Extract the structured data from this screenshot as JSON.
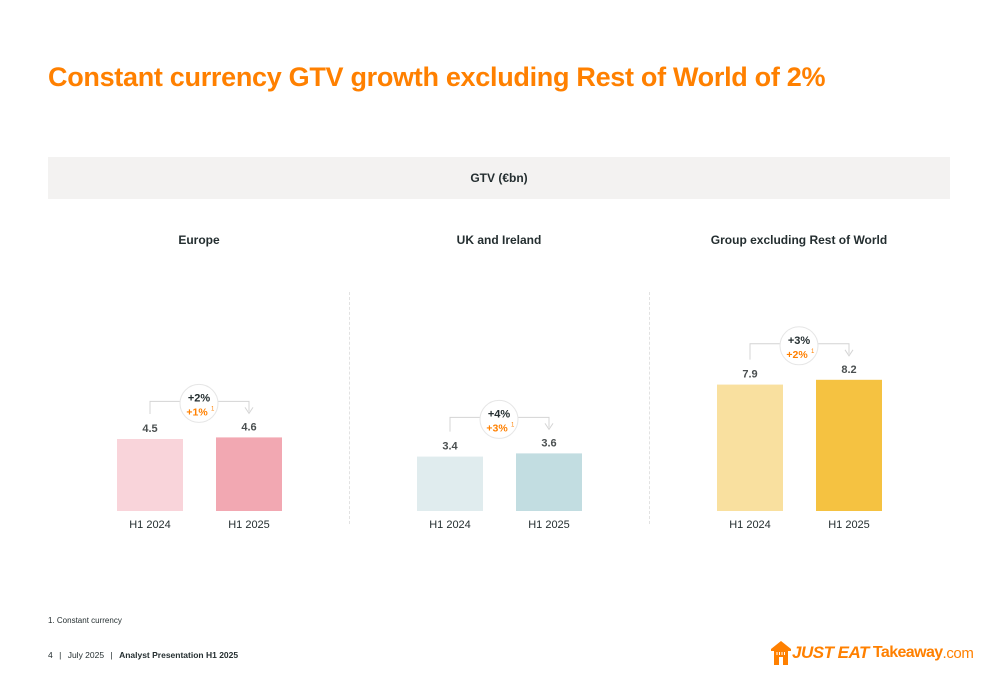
{
  "title": "Constant currency GTV growth excluding Rest of World of 2%",
  "band_label": "GTV (€bn)",
  "chart_data": [
    {
      "type": "bar",
      "title": "Europe",
      "categories": [
        "H1 2024",
        "H1 2025"
      ],
      "values": [
        4.5,
        4.6
      ],
      "value_labels": [
        "4.5",
        "4.6"
      ],
      "colors": [
        "#f9d4da",
        "#f2a8b2"
      ],
      "growth": "+2%",
      "growth_cc": "+1%",
      "growth_note": "1"
    },
    {
      "type": "bar",
      "title": "UK and Ireland",
      "categories": [
        "H1 2024",
        "H1 2025"
      ],
      "values": [
        3.4,
        3.6
      ],
      "value_labels": [
        "3.4",
        "3.6"
      ],
      "colors": [
        "#e0ecee",
        "#c2dde1"
      ],
      "growth": "+4%",
      "growth_cc": "+3%",
      "growth_note": "1"
    },
    {
      "type": "bar",
      "title": "Group excluding Rest of World",
      "categories": [
        "H1 2024",
        "H1 2025"
      ],
      "values": [
        7.9,
        8.2
      ],
      "value_labels": [
        "7.9",
        "8.2"
      ],
      "colors": [
        "#f9e09f",
        "#f5c241"
      ],
      "growth": "+3%",
      "growth_cc": "+2%",
      "growth_note": "1"
    }
  ],
  "footnote": "1. Constant currency",
  "footer": {
    "page": "4",
    "date": "July 2025",
    "doc": "Analyst Presentation H1 2025"
  },
  "logo": {
    "main": "JUST EAT",
    "takeaway": "Takeaway",
    "com": ".com"
  },
  "colors": {
    "accent": "#ff8000",
    "text": "#242e30"
  }
}
